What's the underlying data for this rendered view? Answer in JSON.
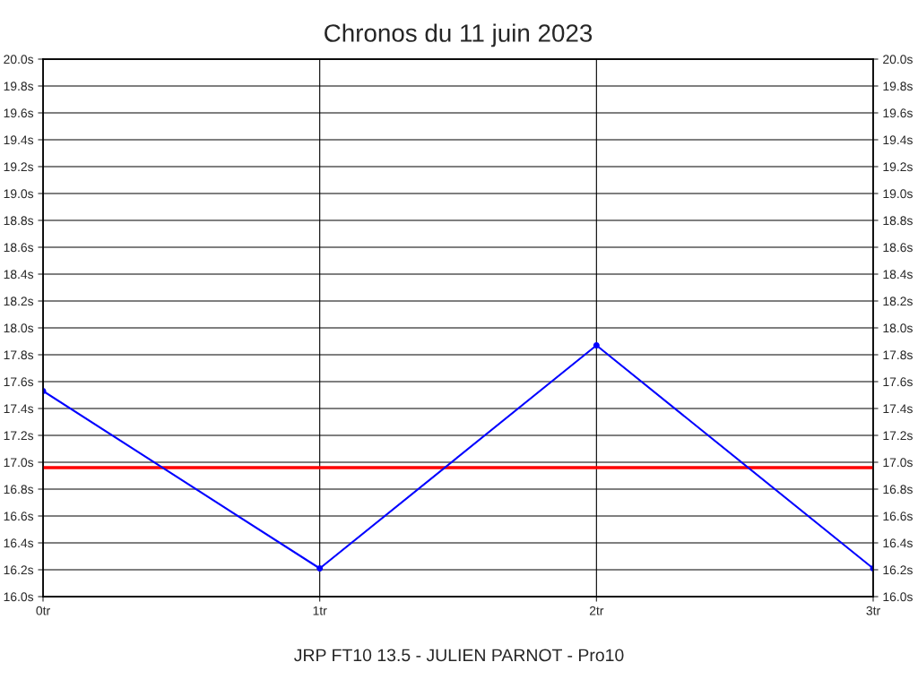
{
  "chart_data": {
    "type": "line",
    "title": "Chronos du 11 juin 2023",
    "x": [
      0,
      1,
      2,
      3
    ],
    "series": [
      {
        "color": "#0000ff",
        "values": [
          17.53,
          16.21,
          17.87,
          16.21
        ]
      }
    ],
    "xlim": [
      0,
      3
    ],
    "xticks": [
      {
        "value": 0,
        "label": "0tr"
      },
      {
        "value": 1,
        "label": "1tr"
      },
      {
        "value": 2,
        "label": "2tr"
      },
      {
        "value": 3,
        "label": "3tr"
      }
    ],
    "ylim": [
      16.0,
      20.0
    ],
    "yticks": [
      {
        "value": 16.0,
        "label": "16.0s"
      },
      {
        "value": 16.2,
        "label": "16.2s"
      },
      {
        "value": 16.4,
        "label": "16.4s"
      },
      {
        "value": 16.6,
        "label": "16.6s"
      },
      {
        "value": 16.8,
        "label": "16.8s"
      },
      {
        "value": 17.0,
        "label": "17.0s"
      },
      {
        "value": 17.2,
        "label": "17.2s"
      },
      {
        "value": 17.4,
        "label": "17.4s"
      },
      {
        "value": 17.6,
        "label": "17.6s"
      },
      {
        "value": 17.8,
        "label": "17.8s"
      },
      {
        "value": 18.0,
        "label": "18.0s"
      },
      {
        "value": 18.2,
        "label": "18.2s"
      },
      {
        "value": 18.4,
        "label": "18.4s"
      },
      {
        "value": 18.6,
        "label": "18.6s"
      },
      {
        "value": 18.8,
        "label": "18.8s"
      },
      {
        "value": 19.0,
        "label": "19.0s"
      },
      {
        "value": 19.2,
        "label": "19.2s"
      },
      {
        "value": 19.4,
        "label": "19.4s"
      },
      {
        "value": 19.6,
        "label": "19.6s"
      },
      {
        "value": 19.8,
        "label": "19.8s"
      },
      {
        "value": 20.0,
        "label": "20.0s"
      }
    ],
    "y2lim": [
      16.0,
      20.0
    ],
    "y2ticks": [
      {
        "value": 16.0,
        "label": "16.0s"
      },
      {
        "value": 16.2,
        "label": "16.2s"
      },
      {
        "value": 16.4,
        "label": "16.4s"
      },
      {
        "value": 16.6,
        "label": "16.6s"
      },
      {
        "value": 16.8,
        "label": "16.8s"
      },
      {
        "value": 17.0,
        "label": "17.0s"
      },
      {
        "value": 17.2,
        "label": "17.2s"
      },
      {
        "value": 17.4,
        "label": "17.4s"
      },
      {
        "value": 17.6,
        "label": "17.6s"
      },
      {
        "value": 17.8,
        "label": "17.8s"
      },
      {
        "value": 18.0,
        "label": "18.0s"
      },
      {
        "value": 18.2,
        "label": "18.2s"
      },
      {
        "value": 18.4,
        "label": "18.4s"
      },
      {
        "value": 18.6,
        "label": "18.6s"
      },
      {
        "value": 18.8,
        "label": "18.8s"
      },
      {
        "value": 19.0,
        "label": "19.0s"
      },
      {
        "value": 19.2,
        "label": "19.2s"
      },
      {
        "value": 19.4,
        "label": "19.4s"
      },
      {
        "value": 19.6,
        "label": "19.6s"
      },
      {
        "value": 19.8,
        "label": "19.8s"
      },
      {
        "value": 20.0,
        "label": "20.0s"
      }
    ],
    "ref_lines": [
      {
        "axis": "y",
        "value": 16.96,
        "color": "#ff0000",
        "line_style": "solid"
      }
    ],
    "grid": true,
    "marker": "circle",
    "line_style": "solid",
    "annotations": [
      "JRP FT10 13.5 - JULIEN PARNOT - Pro10"
    ]
  }
}
